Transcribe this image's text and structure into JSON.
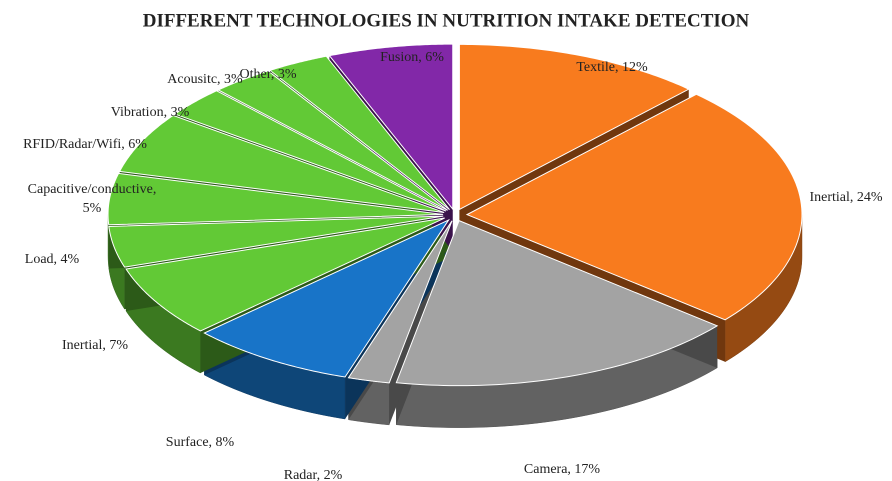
{
  "chart_data": {
    "type": "pie3d",
    "title": "DIFFERENT TECHNOLOGIES IN NUTRITION INTAKE DETECTION",
    "value_labels": [
      "Textile, 12%",
      "Inertial, 24%",
      "Camera, 17%",
      "Radar, 2%",
      "Surface, 8%",
      "Inertial, 7%",
      "Load, 4%",
      "Capacitive/conductive, 5%",
      "RFID/Radar/Wifi, 6%",
      "Vibration, 3%",
      "Acousitc, 3%",
      "Other, 3%",
      "Fusion, 6%"
    ],
    "values": [
      12,
      24,
      17,
      2,
      8,
      7,
      4,
      5,
      6,
      3,
      3,
      3,
      6
    ],
    "colors": [
      "#f87b1e",
      "#f87b1e",
      "#a3a3a3",
      "#a3a3a3",
      "#1874c8",
      "#62c936",
      "#62c936",
      "#62c936",
      "#62c936",
      "#62c936",
      "#62c936",
      "#62c936",
      "#8228a8"
    ]
  }
}
